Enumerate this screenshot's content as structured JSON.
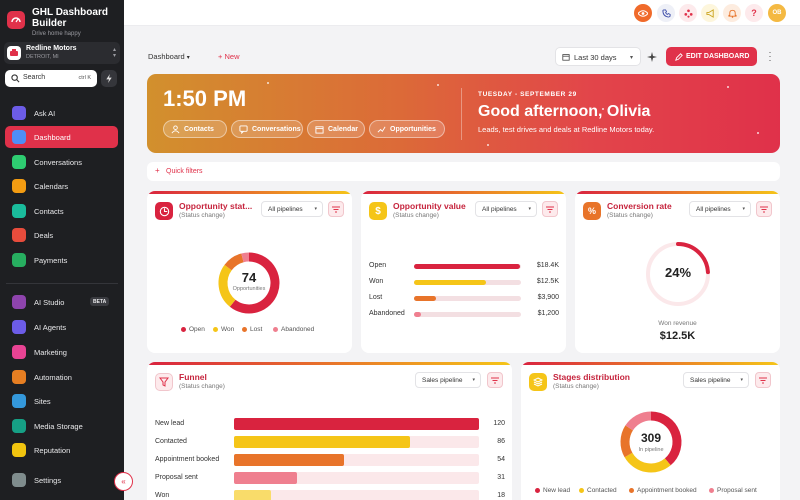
{
  "brand": {
    "title": "GHL Dashboard Builder",
    "subtitle": "Drive home happy"
  },
  "account": {
    "name": "Redline Motors",
    "location": "DETROIT, MI"
  },
  "search": {
    "label": "Search",
    "shortcut": "ctrl K"
  },
  "sidebar": {
    "items": [
      {
        "label": "Ask AI",
        "icon": "sparkle-icon",
        "color": "#6c5ce7"
      },
      {
        "label": "Dashboard",
        "icon": "dashboard-icon",
        "color": "#4f8ef7",
        "active": true
      },
      {
        "label": "Conversations",
        "icon": "chat-icon",
        "color": "#2ecc71"
      },
      {
        "label": "Calendars",
        "icon": "calendar-icon",
        "color": "#f39c12"
      },
      {
        "label": "Contacts",
        "icon": "contacts-icon",
        "color": "#1abc9c"
      },
      {
        "label": "Deals",
        "icon": "deals-icon",
        "color": "#e74c3c"
      },
      {
        "label": "Payments",
        "icon": "payments-icon",
        "color": "#27ae60"
      },
      {
        "label": "AI Studio",
        "icon": "ai-studio-icon",
        "color": "#8e44ad",
        "badge": "BETA"
      },
      {
        "label": "AI Agents",
        "icon": "ai-agents-icon",
        "color": "#6c5ce7"
      },
      {
        "label": "Marketing",
        "icon": "marketing-icon",
        "color": "#e84393"
      },
      {
        "label": "Automation",
        "icon": "automation-icon",
        "color": "#e67e22"
      },
      {
        "label": "Sites",
        "icon": "sites-icon",
        "color": "#3498db"
      },
      {
        "label": "Media Storage",
        "icon": "media-icon",
        "color": "#16a085"
      },
      {
        "label": "Reputation",
        "icon": "reputation-icon",
        "color": "#f1c40f"
      },
      {
        "label": "Settings",
        "icon": "settings-icon",
        "color": "#7f8c8d"
      }
    ]
  },
  "topbar": {
    "avatar_initials": "OB"
  },
  "toolbar": {
    "dashboard_label": "Dashboard",
    "new_label": "New",
    "range_label": "Last 30 days",
    "edit_label": "EDIT DASHBOARD"
  },
  "hero": {
    "time": "1:50 PM",
    "date": "TUESDAY - SEPTEMBER 29",
    "greeting": "Good afternoon, Olivia",
    "subtitle": "Leads, test drives and deals at Redline Motors today.",
    "chips": [
      "Contacts",
      "Conversations",
      "Calendar",
      "Opportunities"
    ]
  },
  "quick_filters": "Quick filters",
  "cards": {
    "opportunity_status": {
      "title": "Opportunity stat...",
      "subtitle": "(Status change)",
      "select": "All pipelines",
      "center_value": "74",
      "center_label": "Opportunities",
      "legend": [
        "Open",
        "Won",
        "Lost",
        "Abandoned"
      ]
    },
    "opportunity_value": {
      "title": "Opportunity value",
      "subtitle": "(Status change)",
      "select": "All pipelines"
    },
    "conversion_rate": {
      "title": "Conversion rate",
      "subtitle": "(Status change)",
      "select": "All pipelines",
      "value": "24%",
      "label": "Won revenue",
      "amount": "$12.5K"
    },
    "funnel": {
      "title": "Funnel",
      "subtitle": "(Status change)",
      "select": "Sales pipeline"
    },
    "stages": {
      "title": "Stages distribution",
      "subtitle": "(Status change)",
      "select": "Sales pipeline",
      "center_value": "309",
      "center_label": "In pipeline",
      "legend": [
        "New lead",
        "Contacted",
        "Appointment booked",
        "Proposal sent"
      ]
    }
  },
  "chart_data": [
    {
      "type": "pie",
      "categories": [
        "Open",
        "Won",
        "Lost",
        "Abandoned"
      ],
      "values": [
        45,
        18,
        8,
        3
      ],
      "colors": [
        "#d9233f",
        "#f5c518",
        "#e8742a",
        "#ef7f8f"
      ]
    },
    {
      "type": "bar",
      "categories": [
        "Open",
        "Won",
        "Lost",
        "Abandoned"
      ],
      "values": [
        18.4,
        12.5,
        3.9,
        1.2
      ],
      "labels": [
        "$18.4K",
        "$12.5K",
        "$3,900",
        "$1,200"
      ],
      "colors": [
        "#d9233f",
        "#f5c518",
        "#e8742a",
        "#ef7f8f"
      ]
    },
    {
      "type": "pie",
      "categories": [
        "Won revenue"
      ],
      "values": [
        24
      ],
      "color": "#d9233f"
    },
    {
      "type": "bar",
      "categories": [
        "New lead",
        "Contacted",
        "Appointment booked",
        "Proposal sent",
        "Won"
      ],
      "values": [
        120,
        86,
        54,
        31,
        18
      ],
      "colors": [
        "#d9233f",
        "#f5c518",
        "#e8742a",
        "#ef7f8f",
        "#f9dc6a"
      ]
    },
    {
      "type": "pie",
      "categories": [
        "New lead",
        "Contacted",
        "Appointment booked",
        "Proposal sent"
      ],
      "values": [
        120,
        86,
        54,
        49
      ],
      "colors": [
        "#d9233f",
        "#f5c518",
        "#e8742a",
        "#ef7f8f"
      ]
    }
  ]
}
